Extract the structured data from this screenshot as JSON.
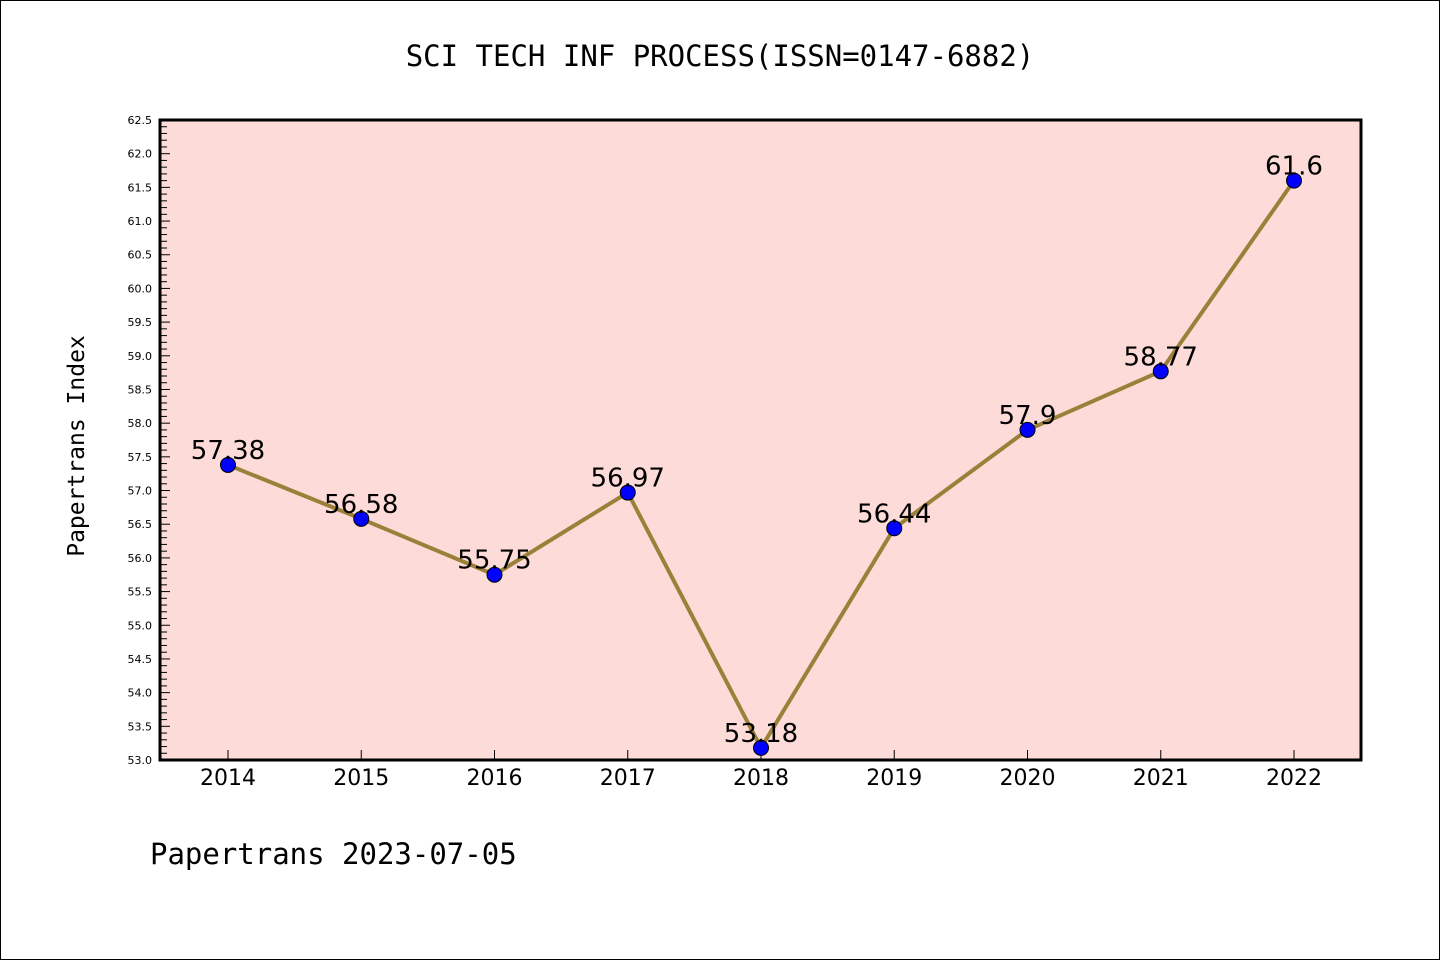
{
  "chart_data": {
    "type": "line",
    "title": "SCI TECH INF PROCESS(ISSN=0147-6882)",
    "xlabel": "",
    "ylabel": "Papertrans Index",
    "footer": "Papertrans 2023-07-05",
    "categories": [
      "2014",
      "2015",
      "2016",
      "2017",
      "2018",
      "2019",
      "2020",
      "2021",
      "2022"
    ],
    "values": [
      57.38,
      56.58,
      55.75,
      56.97,
      53.18,
      56.44,
      57.9,
      58.77,
      61.6
    ],
    "data_labels": [
      "57.38",
      "56.58",
      "55.75",
      "56.97",
      "53.18",
      "56.44",
      "57.9",
      "58.77",
      "61.6"
    ],
    "ylim": [
      53.0,
      62.5
    ],
    "yticks": [
      "53.0",
      "53.5",
      "54.0",
      "54.5",
      "55.0",
      "55.5",
      "56.0",
      "56.5",
      "57.0",
      "57.5",
      "58.0",
      "58.5",
      "59.0",
      "59.5",
      "60.0",
      "60.5",
      "61.0",
      "61.5",
      "62.0",
      "62.5"
    ],
    "grid": false,
    "colors": {
      "plot_bg": "#fddbd8",
      "line": "#9a8038",
      "marker": "#0000ff"
    }
  }
}
